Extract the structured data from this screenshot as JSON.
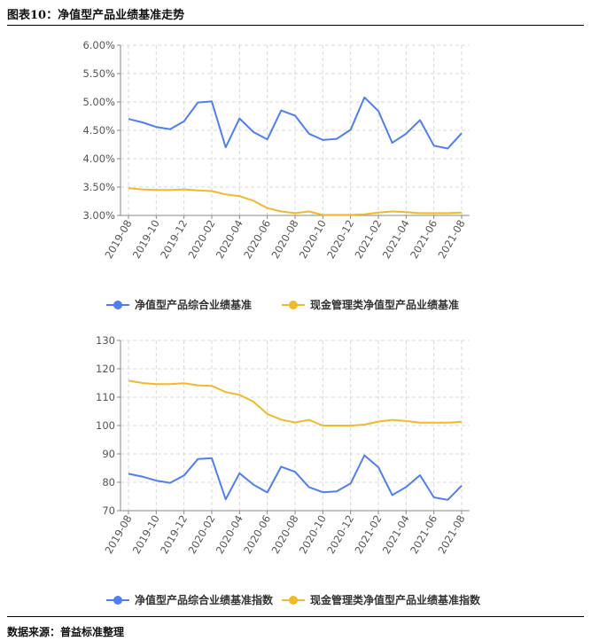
{
  "header": {
    "title": "图表10：净值型产品业绩基准走势"
  },
  "footer": {
    "source": "数据来源：普益标准整理"
  },
  "colors": {
    "blue": "#4f7ef0",
    "gold": "#f4b92a",
    "grid": "#d9d9d9",
    "axis": "#888888"
  },
  "chart_data": [
    {
      "type": "line",
      "x": [
        "2019-08",
        "2019-09",
        "2019-10",
        "2019-11",
        "2019-12",
        "2020-01",
        "2020-02",
        "2020-03",
        "2020-04",
        "2020-05",
        "2020-06",
        "2020-07",
        "2020-08",
        "2020-09",
        "2020-10",
        "2020-11",
        "2020-12",
        "2021-01",
        "2021-02",
        "2021-03",
        "2021-04",
        "2021-05",
        "2021-06",
        "2021-07",
        "2021-08"
      ],
      "tick_labels": [
        "2019-08",
        "2019-10",
        "2019-12",
        "2020-02",
        "2020-04",
        "2020-06",
        "2020-08",
        "2020-10",
        "2020-12",
        "2021-02",
        "2021-04",
        "2021-06",
        "2021-08"
      ],
      "ylim": [
        3.0,
        6.0
      ],
      "yticks": [
        "3.00%",
        "3.50%",
        "4.00%",
        "4.50%",
        "5.00%",
        "5.50%",
        "6.00%"
      ],
      "series": [
        {
          "name": "净值型产品综合业绩基准",
          "values": [
            4.7,
            4.64,
            4.56,
            4.52,
            4.66,
            4.99,
            5.01,
            4.2,
            4.71,
            4.47,
            4.34,
            4.85,
            4.76,
            4.44,
            4.33,
            4.35,
            4.51,
            5.08,
            4.84,
            4.28,
            4.44,
            4.68,
            4.23,
            4.18,
            4.45
          ]
        },
        {
          "name": "现金管理类净值型产品业绩基准",
          "values": [
            3.48,
            3.46,
            3.45,
            3.45,
            3.46,
            3.44,
            3.43,
            3.37,
            3.34,
            3.26,
            3.13,
            3.07,
            3.04,
            3.07,
            3.01,
            3.01,
            3.01,
            3.02,
            3.05,
            3.07,
            3.06,
            3.04,
            3.04,
            3.04,
            3.05
          ]
        }
      ],
      "grid": true,
      "legend": "bottom"
    },
    {
      "type": "line",
      "x": [
        "2019-08",
        "2019-09",
        "2019-10",
        "2019-11",
        "2019-12",
        "2020-01",
        "2020-02",
        "2020-03",
        "2020-04",
        "2020-05",
        "2020-06",
        "2020-07",
        "2020-08",
        "2020-09",
        "2020-10",
        "2020-11",
        "2020-12",
        "2021-01",
        "2021-02",
        "2021-03",
        "2021-04",
        "2021-05",
        "2021-06",
        "2021-07",
        "2021-08"
      ],
      "tick_labels": [
        "2019-08",
        "2019-10",
        "2019-12",
        "2020-02",
        "2020-04",
        "2020-06",
        "2020-08",
        "2020-10",
        "2020-12",
        "2021-02",
        "2021-04",
        "2021-06",
        "2021-08"
      ],
      "ylim": [
        70,
        130
      ],
      "yticks": [
        "70",
        "80",
        "90",
        "100",
        "110",
        "120",
        "130"
      ],
      "series": [
        {
          "name": "净值型产品综合业绩基准指数",
          "values": [
            83.0,
            82.0,
            80.6,
            79.8,
            82.4,
            88.2,
            88.5,
            74.0,
            83.2,
            79.2,
            76.4,
            85.5,
            83.7,
            78.3,
            76.5,
            76.8,
            79.6,
            89.5,
            85.3,
            75.5,
            78.3,
            82.5,
            74.7,
            73.8,
            78.8
          ]
        },
        {
          "name": "现金管理类净值型产品业绩基准指数",
          "values": [
            115.8,
            115.0,
            114.6,
            114.6,
            114.9,
            114.2,
            114.0,
            111.8,
            110.8,
            108.4,
            104.1,
            102.1,
            101.1,
            102.0,
            100.0,
            100.0,
            100.0,
            100.3,
            101.4,
            102.0,
            101.6,
            101.0,
            101.0,
            101.0,
            101.3
          ]
        }
      ],
      "grid": true,
      "legend": "bottom"
    }
  ]
}
